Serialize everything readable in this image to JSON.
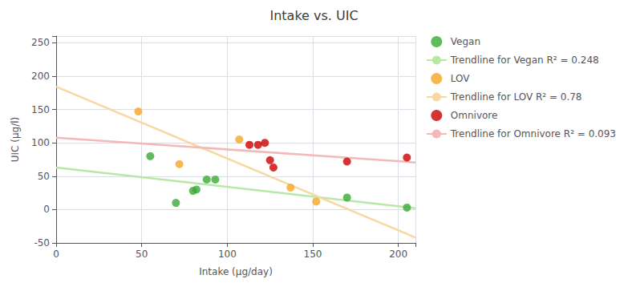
{
  "chart_data": {
    "type": "scatter",
    "title": "Intake vs. UIC",
    "x_label": "Intake (μg/day)",
    "y_label": "UIC (μg/l)",
    "xlim": [
      0,
      210
    ],
    "ylim": [
      -50,
      260
    ],
    "xticks": [
      0,
      50,
      100,
      150,
      200
    ],
    "yticks": [
      -50,
      0,
      50,
      100,
      150,
      200,
      250
    ],
    "grid": true,
    "legend": "right",
    "series": [
      {
        "name": "Vegan",
        "type": "scatter",
        "marker": "circle",
        "color": "#3aaa35",
        "x": [
          55,
          70,
          80,
          82,
          88,
          93,
          170,
          205
        ],
        "values": [
          80,
          10,
          28,
          30,
          45,
          45,
          18,
          3
        ]
      },
      {
        "name": "Trendline for Vegan R² = 0.248",
        "type": "line",
        "line_style": "solid",
        "color": "#b8e8a8",
        "x": [
          0,
          210
        ],
        "values": [
          62.97,
          2.0
        ]
      },
      {
        "name": "LOV",
        "type": "scatter",
        "marker": "circle",
        "color": "#f5a623",
        "x": [
          48,
          72,
          107,
          137,
          152
        ],
        "values": [
          147,
          68,
          105,
          33,
          12
        ]
      },
      {
        "name": "Trendline for LOV R² = 0.78",
        "type": "line",
        "line_style": "solid",
        "color": "#f8d8a0",
        "x": [
          0,
          210
        ],
        "values": [
          184.08,
          -41.95
        ]
      },
      {
        "name": "Omnivore",
        "type": "scatter",
        "marker": "circle",
        "color": "#cc0000",
        "x": [
          113,
          118,
          122,
          125,
          127,
          170,
          205
        ],
        "values": [
          97,
          97,
          100,
          74,
          63,
          72,
          78
        ]
      },
      {
        "name": "Trendline for Omnivore R² = 0.093",
        "type": "line",
        "line_style": "solid",
        "color": "#f5b8b8",
        "x": [
          0,
          210
        ],
        "values": [
          107.84,
          70.58
        ]
      }
    ]
  }
}
